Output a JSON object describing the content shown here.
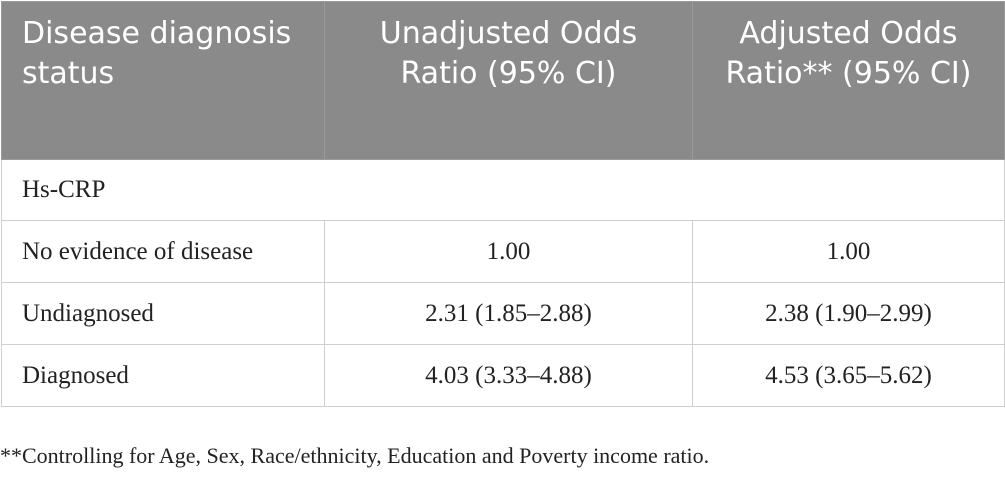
{
  "table": {
    "headers": [
      "Disease diagnosis status",
      "Unadjusted Odds Ratio (95% CI)",
      "Adjusted Odds Ratio** (95% CI)"
    ],
    "section_label": "Hs-CRP",
    "rows": [
      {
        "status": "No evidence of disease",
        "unadjusted": "1.00",
        "adjusted": "1.00"
      },
      {
        "status": "Undiagnosed",
        "unadjusted": "2.31 (1.85–2.88)",
        "adjusted": "2.38 (1.90–2.99)"
      },
      {
        "status": "Diagnosed",
        "unadjusted": "4.03 (3.33–4.88)",
        "adjusted": "4.53 (3.65–5.62)"
      }
    ]
  },
  "footnote": "**Controlling for Age, Sex, Race/ethnicity, Education and Poverty income ratio.",
  "colors": {
    "header_background": "#8a8a8a",
    "header_text": "#ffffff",
    "grid_line": "#cfcfcf"
  }
}
